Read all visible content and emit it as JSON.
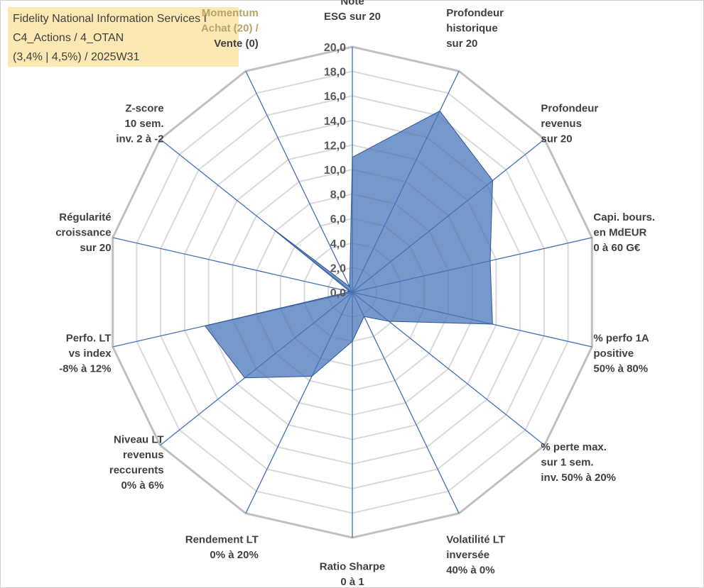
{
  "header": {
    "line1": "Fidelity National Information Services I",
    "line2": "C4_Actions / 4_OTAN",
    "line3": "(3,4% | 4,5%) / 2025W31"
  },
  "chart_data": {
    "type": "radar",
    "title": "Fidelity National Information Services I",
    "rmin": 0,
    "rmax": 20,
    "rstep": 2,
    "tick_labels": [
      "0,0",
      "2,0",
      "4,0",
      "6,0",
      "8,0",
      "10,0",
      "12,0",
      "14,0",
      "16,0",
      "18,0",
      "20,0"
    ],
    "grid": true,
    "axes": [
      {
        "label_lines": [
          "Note",
          "ESG sur 20"
        ]
      },
      {
        "label_lines": [
          "Profondeur",
          "historique",
          "sur 20"
        ]
      },
      {
        "label_lines": [
          "Profondeur",
          "revenus",
          "sur 20"
        ]
      },
      {
        "label_lines": [
          "Capi. bours.",
          "en MdEUR",
          "0 à 60 G€"
        ]
      },
      {
        "label_lines": [
          "% perfo 1A",
          "positive",
          "50% à 80%"
        ]
      },
      {
        "label_lines": [
          "% perte max.",
          "sur 1 sem.",
          "inv. 50% à 20%"
        ]
      },
      {
        "label_lines": [
          "Volatilité LT",
          "inversée",
          "40% à 0%"
        ]
      },
      {
        "label_lines": [
          "Ratio Sharpe",
          "0 à 1"
        ]
      },
      {
        "label_lines": [
          "Rendement LT",
          "0% à 20%"
        ]
      },
      {
        "label_lines": [
          "Niveau LT",
          "revenus",
          "reccurents",
          "0% à 6%"
        ]
      },
      {
        "label_lines": [
          "Perfo. LT",
          "vs index",
          "-8% à 12%"
        ]
      },
      {
        "label_lines": [
          "Régularité",
          "croissance",
          "sur 20"
        ]
      },
      {
        "label_lines": [
          "Z-score",
          "10 sem.",
          "inv. 2 à -2"
        ]
      },
      {
        "label_lines": [
          "Momentum",
          "Achat (20) /",
          "Vente (0)"
        ]
      }
    ],
    "series": [
      {
        "values": [
          11.0,
          16.4,
          14.6,
          11.5,
          11.7,
          3.8,
          2.2,
          4.0,
          7.6,
          11.2,
          12.3,
          0.2,
          8.6,
          0.5
        ],
        "color": "#4a76b8"
      }
    ]
  }
}
